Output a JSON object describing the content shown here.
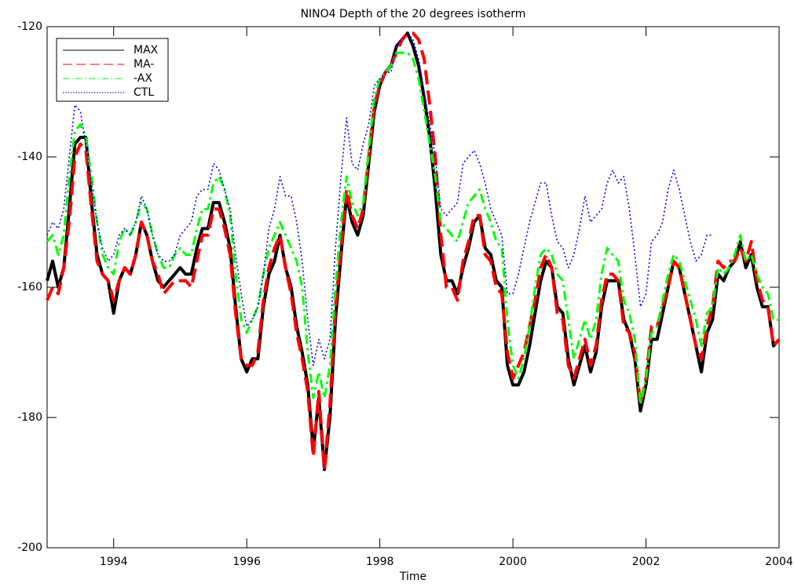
{
  "chart_data": {
    "type": "line",
    "title": "NINO4 Depth of the 20 degrees isotherm",
    "x_label": "Time",
    "xlim": [
      1993,
      2004
    ],
    "xticks": [
      1994,
      1996,
      1998,
      2000,
      2002,
      2004
    ],
    "ylim": [
      -200,
      -120
    ],
    "yticks": [
      -200,
      -180,
      -160,
      -140,
      -120
    ],
    "legend": "top-left",
    "x": [
      1993,
      1993.083,
      1993.167,
      1993.25,
      1993.333,
      1993.417,
      1993.5,
      1993.583,
      1993.667,
      1993.75,
      1993.833,
      1993.917,
      1994,
      1994.083,
      1994.167,
      1994.25,
      1994.333,
      1994.417,
      1994.5,
      1994.583,
      1994.667,
      1994.75,
      1994.833,
      1994.917,
      1995,
      1995.083,
      1995.167,
      1995.25,
      1995.333,
      1995.417,
      1995.5,
      1995.583,
      1995.667,
      1995.75,
      1995.833,
      1995.917,
      1996,
      1996.083,
      1996.167,
      1996.25,
      1996.333,
      1996.417,
      1996.5,
      1996.583,
      1996.667,
      1996.75,
      1996.833,
      1996.917,
      1997,
      1997.083,
      1997.167,
      1997.25,
      1997.333,
      1997.417,
      1997.5,
      1997.583,
      1997.667,
      1997.75,
      1997.833,
      1997.917,
      1998,
      1998.083,
      1998.167,
      1998.25,
      1998.333,
      1998.417,
      1998.5,
      1998.583,
      1998.667,
      1998.75,
      1998.833,
      1998.917,
      1999,
      1999.083,
      1999.167,
      1999.25,
      1999.333,
      1999.417,
      1999.5,
      1999.583,
      1999.667,
      1999.75,
      1999.833,
      1999.917,
      2000,
      2000.083,
      2000.167,
      2000.25,
      2000.333,
      2000.417,
      2000.5,
      2000.583,
      2000.667,
      2000.75,
      2000.833,
      2000.917,
      2001,
      2001.083,
      2001.167,
      2001.25,
      2001.333,
      2001.417,
      2001.5,
      2001.583,
      2001.667,
      2001.75,
      2001.833,
      2001.917,
      2002,
      2002.083,
      2002.167,
      2002.25,
      2002.333,
      2002.417,
      2002.5,
      2002.583,
      2002.667,
      2002.75,
      2002.833,
      2002.917,
      2003,
      2003.083,
      2003.167,
      2003.25,
      2003.333,
      2003.417,
      2003.5,
      2003.583,
      2003.667,
      2003.75,
      2003.833,
      2003.917,
      2004
    ],
    "series": [
      {
        "name": "MAX",
        "color": "#000000",
        "style": "solid",
        "values": [
          -159,
          -156,
          -160,
          -157,
          -148,
          -138,
          -137,
          -137,
          -147,
          -155,
          -158,
          -159,
          -164,
          -159,
          -157,
          -158,
          -155,
          -150,
          -152,
          -156,
          -159,
          -160,
          -159,
          -158,
          -157,
          -158,
          -158,
          -154,
          -151,
          -151,
          -147,
          -147,
          -150,
          -154,
          -163,
          -171,
          -173,
          -171,
          -171,
          -163,
          -158,
          -156,
          -152,
          -157,
          -160,
          -166,
          -170,
          -175,
          -185,
          -177,
          -188,
          -180,
          -165,
          -155,
          -146,
          -150,
          -152,
          -149,
          -141,
          -133,
          -129,
          -127,
          -126,
          -123,
          -122,
          -121,
          -123,
          -126,
          -131,
          -137,
          -145,
          -155,
          -159,
          -159,
          -161,
          -157,
          -154,
          -150,
          -149,
          -154,
          -155,
          -159,
          -160,
          -172,
          -175,
          -175,
          -173,
          -169,
          -164,
          -159,
          -156,
          -157,
          -163,
          -164,
          -171,
          -175,
          -172,
          -169,
          -173,
          -170,
          -163,
          -159,
          -159,
          -159,
          -165,
          -167,
          -171,
          -179,
          -175,
          -168,
          -168,
          -164,
          -160,
          -156,
          -157,
          -161,
          -165,
          -169,
          -173,
          -167,
          -165,
          -158,
          -159,
          -157,
          -156,
          -153,
          -157,
          -155,
          -160,
          -163,
          -163,
          -169,
          -168
        ]
      },
      {
        "name": "MA-",
        "color": "#ff0000",
        "style": "dashed",
        "values": [
          -162,
          -160,
          -161,
          -157,
          -150,
          -140,
          -138,
          -139,
          -148,
          -156,
          -158,
          -159,
          -162,
          -159,
          -157,
          -158,
          -155,
          -150,
          -152,
          -156,
          -158,
          -161,
          -160,
          -159,
          -159,
          -159,
          -160,
          -156,
          -152,
          -152,
          -148,
          -148,
          -151,
          -155,
          -164,
          -171,
          -172,
          -172,
          -170,
          -162,
          -157,
          -154,
          -152,
          -157,
          -161,
          -167,
          -171,
          -176,
          -186,
          -176,
          -188,
          -178,
          -163,
          -154,
          -145,
          -149,
          -151,
          -148,
          -140,
          -132,
          -129,
          -127,
          -126,
          -124,
          -122,
          -121,
          -121,
          -122,
          -125,
          -132,
          -140,
          -152,
          -160,
          -160,
          -162,
          -156,
          -153,
          -149,
          -149,
          -155,
          -156,
          -160,
          -161,
          -170,
          -174,
          -172,
          -170,
          -166,
          -162,
          -157,
          -155,
          -157,
          -164,
          -165,
          -172,
          -174,
          -171,
          -168,
          -172,
          -169,
          -162,
          -158,
          -158,
          -159,
          -166,
          -167,
          -170,
          -178,
          -174,
          -166,
          -166,
          -163,
          -160,
          -156,
          -157,
          -161,
          -165,
          -169,
          -171,
          -166,
          -163,
          -156,
          -157,
          -156,
          -156,
          -154,
          -156,
          -153,
          -159,
          -162,
          -163,
          -169,
          -168
        ]
      },
      {
        "name": "-AX",
        "color": "#00ff00",
        "style": "dashdot",
        "values": [
          -153,
          -152,
          -155,
          -152,
          -143,
          -136,
          -135,
          -137,
          -143,
          -150,
          -155,
          -157,
          -158,
          -153,
          -151,
          -152,
          -150,
          -147,
          -148,
          -152,
          -155,
          -157,
          -157,
          -155,
          -154,
          -155,
          -155,
          -151,
          -148,
          -148,
          -144,
          -143,
          -145,
          -149,
          -158,
          -165,
          -167,
          -165,
          -163,
          -158,
          -154,
          -152,
          -150,
          -152,
          -154,
          -156,
          -160,
          -170,
          -177,
          -173,
          -177,
          -172,
          -160,
          -150,
          -143,
          -147,
          -149,
          -147,
          -139,
          -131,
          -128,
          -127,
          -126,
          -124,
          -124,
          -124,
          -125,
          -128,
          -133,
          -138,
          -143,
          -150,
          -151,
          -152,
          -153,
          -150,
          -147,
          -146,
          -145,
          -148,
          -150,
          -153,
          -154,
          -165,
          -172,
          -174,
          -171,
          -166,
          -160,
          -155,
          -154,
          -155,
          -158,
          -159,
          -165,
          -171,
          -168,
          -165,
          -168,
          -165,
          -158,
          -154,
          -155,
          -156,
          -162,
          -164,
          -168,
          -178,
          -174,
          -167,
          -166,
          -162,
          -158,
          -155,
          -156,
          -159,
          -162,
          -165,
          -169,
          -164,
          -163,
          -157,
          -158,
          -157,
          -155,
          -152,
          -156,
          -155,
          -158,
          -160,
          -161,
          -165,
          -165
        ]
      },
      {
        "name": "CTL",
        "color": "#0000ff",
        "style": "dotted",
        "values": [
          -152,
          -150,
          -151,
          -148,
          -140,
          -132,
          -133,
          -138,
          -144,
          -150,
          -154,
          -156,
          -155,
          -152,
          -151,
          -152,
          -150,
          -146,
          -148,
          -152,
          -155,
          -156,
          -156,
          -155,
          -152,
          -151,
          -150,
          -146,
          -145,
          -145,
          -141,
          -142,
          -145,
          -148,
          -155,
          -161,
          -166,
          -165,
          -163,
          -158,
          -151,
          -148,
          -143,
          -146,
          -146,
          -150,
          -156,
          -165,
          -172,
          -168,
          -171,
          -168,
          -154,
          -143,
          -134,
          -141,
          -142,
          -138,
          -135,
          -129,
          -128,
          -127,
          -127,
          -123,
          -122,
          -121,
          -122,
          -125,
          -130,
          -135,
          -140,
          -148,
          -149,
          -148,
          -147,
          -141,
          -140,
          -139,
          -141,
          -144,
          -148,
          -150,
          -152,
          -161,
          -161,
          -158,
          -154,
          -150,
          -147,
          -144,
          -144,
          -149,
          -153,
          -154,
          -157,
          -155,
          -151,
          -146,
          -150,
          -149,
          -148,
          -144,
          -142,
          -144,
          -143,
          -148,
          -155,
          -163,
          -161,
          -153,
          -152,
          -150,
          -145,
          -142,
          -145,
          -149,
          -153,
          -156,
          -155,
          -152,
          -152,
          null,
          null,
          null,
          null,
          null,
          null,
          null,
          null,
          null,
          null,
          null,
          null
        ]
      }
    ]
  }
}
